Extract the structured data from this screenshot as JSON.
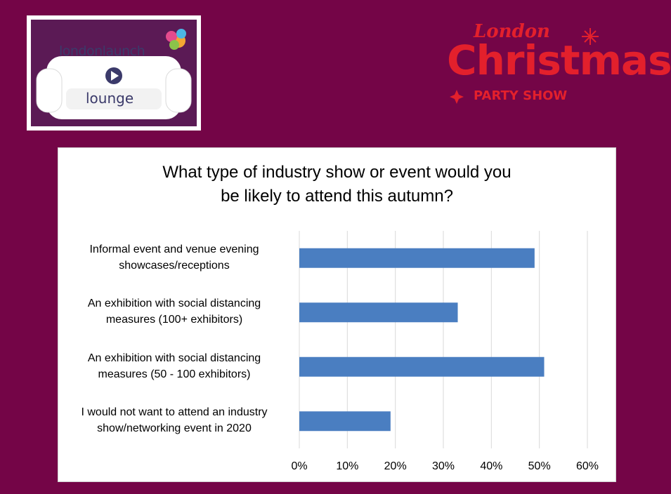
{
  "logos": {
    "left_wordmark": "londonlaunch",
    "left_sub": "lounge",
    "right_top": "London",
    "right_main": "Christmas",
    "right_sub": "PARTY SHOW"
  },
  "colors": {
    "background": "#740547",
    "bar": "#4a7ec1",
    "logo_red": "#e3202c"
  },
  "chart_data": {
    "type": "bar",
    "orientation": "horizontal",
    "title": "What type of industry show or event would you\nbe likely to attend this autumn?",
    "categories": [
      "Informal event and venue evening\nshowcases/receptions",
      "An exhibition with social distancing\nmeasures (100+ exhibitors)",
      "An exhibition with social distancing\nmeasures (50 - 100 exhibitors)",
      "I would not want to attend an industry\nshow/networking event in 2020"
    ],
    "values": [
      49,
      33,
      51,
      19
    ],
    "xlim": [
      0,
      60
    ],
    "ticks": [
      "0%",
      "10%",
      "20%",
      "30%",
      "40%",
      "50%",
      "60%"
    ],
    "grid": true,
    "legend": "none"
  }
}
